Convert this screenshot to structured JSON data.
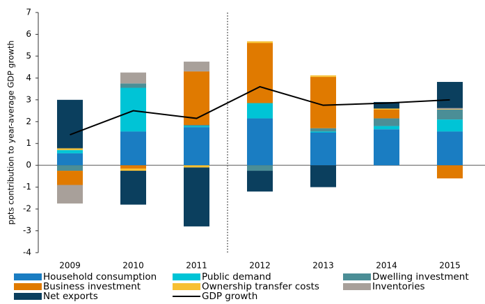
{
  "chart_data": {
    "type": "bar",
    "stacked": true,
    "y_label": "ppts contribution to year-average GDP growth",
    "categories": [
      "2009",
      "2010",
      "2011",
      "2012",
      "2013",
      "2014",
      "2015"
    ],
    "ylim": [
      -4,
      7
    ],
    "yticks": [
      -4,
      -3,
      -2,
      -1,
      0,
      1,
      2,
      3,
      4,
      5,
      6,
      7
    ],
    "series": [
      {
        "name": "Household consumption",
        "color": "#1a7dc2",
        "values": [
          0.55,
          1.55,
          1.75,
          2.15,
          1.5,
          1.65,
          1.55
        ]
      },
      {
        "name": "Public demand",
        "color": "#00c4d6",
        "values": [
          0.15,
          2.0,
          0.05,
          0.7,
          0.05,
          0.15,
          0.55
        ]
      },
      {
        "name": "Dwelling investment",
        "color": "#4b8e96",
        "values": [
          -0.25,
          0.2,
          0.05,
          -0.25,
          0.15,
          0.35,
          0.45
        ]
      },
      {
        "name": "Business investment",
        "color": "#e07a00",
        "values": [
          -0.65,
          -0.15,
          2.45,
          2.75,
          2.35,
          0.4,
          -0.6
        ]
      },
      {
        "name": "Ownership transfer costs",
        "color": "#f7c033",
        "values": [
          0.08,
          -0.1,
          -0.1,
          0.08,
          0.07,
          0.05,
          0.02
        ]
      },
      {
        "name": "Inventories",
        "color": "#a8a09a",
        "values": [
          -0.85,
          0.5,
          0.45,
          0,
          0,
          0,
          0.05
        ]
      },
      {
        "name": "Net exports",
        "color": "#0b3f5e",
        "values": [
          2.22,
          -1.55,
          -2.7,
          -0.95,
          -1.0,
          0.3,
          1.2
        ]
      },
      {
        "name": "GDP growth",
        "type": "line",
        "color": "#000000",
        "values": [
          1.4,
          2.5,
          2.15,
          3.6,
          2.75,
          2.85,
          3.0
        ]
      }
    ]
  }
}
